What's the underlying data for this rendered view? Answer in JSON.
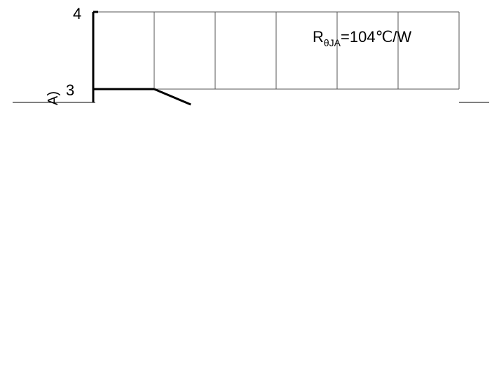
{
  "chart_data": {
    "type": "line",
    "ylabel": "A)",
    "annotation": "RθJA=104℃/W",
    "annotation_main": "R",
    "annotation_sub": "θJA",
    "annotation_rest": "=104℃/W",
    "y_ticks": [
      "4",
      "3"
    ],
    "ylim": [
      3,
      4
    ],
    "grid": true,
    "series": [
      {
        "values": [
          [
            0,
            3
          ],
          [
            1,
            3
          ],
          [
            1.6,
            2.8
          ]
        ]
      }
    ]
  }
}
